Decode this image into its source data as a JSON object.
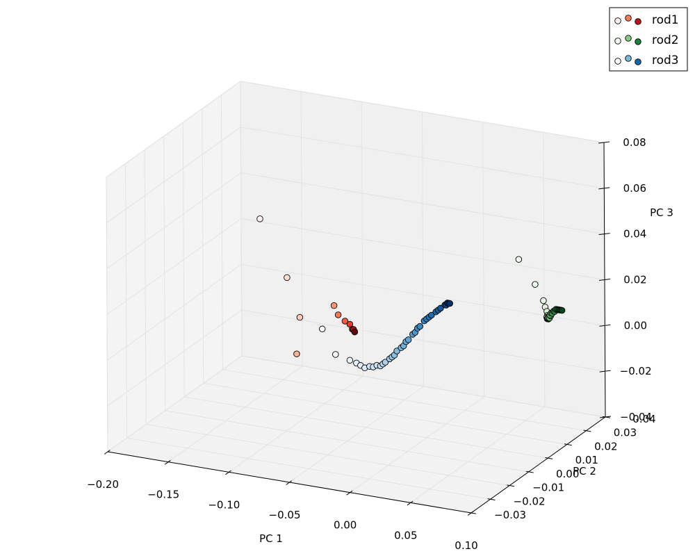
{
  "chart_data": {
    "type": "scatter",
    "projection": "3d",
    "title": "",
    "xlabel": "PC 1",
    "ylabel": "PC 2",
    "zlabel": "PC 3",
    "xlim": [
      -0.2,
      0.1
    ],
    "ylim": [
      -0.03,
      0.04
    ],
    "zlim": [
      -0.04,
      0.08
    ],
    "x_ticks": [
      "−0.20",
      "−0.15",
      "−0.10",
      "−0.05",
      "0.00",
      "0.05",
      "0.10"
    ],
    "y_ticks": [
      "−0.03",
      "−0.02",
      "−0.01",
      "0.00",
      "0.01",
      "0.02",
      "0.03",
      "0.04"
    ],
    "z_ticks": [
      "−0.04",
      "−0.02",
      "0.00",
      "0.02",
      "0.04",
      "0.06",
      "0.08"
    ],
    "grid": true,
    "legend_position": "top-right",
    "series": [
      {
        "name": "rod1",
        "cmap": "Reds",
        "colors": [
          "#fff5f0",
          "#fcbba1",
          "#fb6a4a",
          "#cb181d",
          "#67000d"
        ],
        "points": [
          [
            -0.14,
            0.012,
            0.042
          ],
          [
            -0.11,
            0.007,
            0.022
          ],
          [
            -0.09,
            0.001,
            0.01
          ],
          [
            -0.088,
            -0.002,
            -0.004
          ],
          [
            -0.076,
            0.01,
            0.011
          ],
          [
            -0.071,
            0.009,
            0.008
          ],
          [
            -0.067,
            0.01,
            0.005
          ],
          [
            -0.063,
            0.01,
            0.004
          ],
          [
            -0.061,
            0.01,
            0.002
          ],
          [
            -0.06,
            0.01,
            0.002
          ],
          [
            -0.059,
            0.01,
            0.001
          ],
          [
            -0.059,
            0.01,
            0.001
          ]
        ]
      },
      {
        "name": "rod2",
        "cmap": "Greens",
        "colors": [
          "#f7fcf5",
          "#c7e9c0",
          "#74c476",
          "#238b45",
          "#00441b"
        ],
        "points": [
          [
            0.045,
            0.03,
            0.03
          ],
          [
            0.06,
            0.029,
            0.021
          ],
          [
            0.07,
            0.027,
            0.016
          ],
          [
            0.073,
            0.026,
            0.014
          ],
          [
            0.076,
            0.025,
            0.013
          ],
          [
            0.078,
            0.024,
            0.012
          ],
          [
            0.079,
            0.023,
            0.012
          ],
          [
            0.08,
            0.023,
            0.012
          ],
          [
            0.081,
            0.022,
            0.012
          ],
          [
            0.082,
            0.022,
            0.012
          ],
          [
            0.083,
            0.021,
            0.013
          ],
          [
            0.084,
            0.021,
            0.013
          ],
          [
            0.085,
            0.02,
            0.014
          ],
          [
            0.086,
            0.02,
            0.014
          ],
          [
            0.087,
            0.02,
            0.015
          ],
          [
            0.088,
            0.019,
            0.016
          ],
          [
            0.089,
            0.019,
            0.017
          ],
          [
            0.09,
            0.019,
            0.017
          ],
          [
            0.091,
            0.019,
            0.018
          ],
          [
            0.092,
            0.019,
            0.018
          ],
          [
            0.093,
            0.019,
            0.019
          ],
          [
            0.094,
            0.019,
            0.019
          ],
          [
            0.095,
            0.019,
            0.019
          ],
          [
            0.096,
            0.019,
            0.019
          ],
          [
            0.097,
            0.019,
            0.019
          ],
          [
            0.098,
            0.019,
            0.019
          ]
        ]
      },
      {
        "name": "rod3",
        "cmap": "Blues",
        "colors": [
          "#f7fbff",
          "#c6dbef",
          "#6baed6",
          "#2171b5",
          "#08306b"
        ],
        "points": [
          [
            -0.062,
            -0.005,
            0.011
          ],
          [
            -0.04,
            -0.012,
            0.006
          ],
          [
            -0.025,
            -0.014,
            0.006
          ],
          [
            -0.018,
            -0.015,
            0.006
          ],
          [
            -0.013,
            -0.016,
            0.006
          ],
          [
            -0.008,
            -0.017,
            0.006
          ],
          [
            -0.004,
            -0.017,
            0.007
          ],
          [
            -0.001,
            -0.017,
            0.007
          ],
          [
            0.002,
            -0.017,
            0.008
          ],
          [
            0.005,
            -0.017,
            0.008
          ],
          [
            0.007,
            -0.017,
            0.009
          ],
          [
            0.009,
            -0.017,
            0.01
          ],
          [
            0.011,
            -0.016,
            0.011
          ],
          [
            0.013,
            -0.016,
            0.012
          ],
          [
            0.015,
            -0.016,
            0.013
          ],
          [
            0.017,
            -0.016,
            0.015
          ],
          [
            0.019,
            -0.015,
            0.016
          ],
          [
            0.021,
            -0.015,
            0.017
          ],
          [
            0.023,
            -0.015,
            0.019
          ],
          [
            0.025,
            -0.015,
            0.02
          ],
          [
            0.027,
            -0.014,
            0.022
          ],
          [
            0.029,
            -0.014,
            0.023
          ],
          [
            0.031,
            -0.014,
            0.025
          ],
          [
            0.033,
            -0.014,
            0.026
          ],
          [
            0.035,
            -0.013,
            0.028
          ],
          [
            0.037,
            -0.013,
            0.029
          ],
          [
            0.039,
            -0.013,
            0.03
          ],
          [
            0.041,
            -0.013,
            0.031
          ],
          [
            0.043,
            -0.012,
            0.032
          ],
          [
            0.045,
            -0.012,
            0.033
          ],
          [
            0.047,
            -0.012,
            0.034
          ],
          [
            0.049,
            -0.011,
            0.035
          ],
          [
            0.05,
            -0.011,
            0.035
          ],
          [
            0.051,
            -0.011,
            0.036
          ],
          [
            0.052,
            -0.011,
            0.036
          ],
          [
            0.053,
            -0.011,
            0.036
          ]
        ]
      }
    ]
  }
}
